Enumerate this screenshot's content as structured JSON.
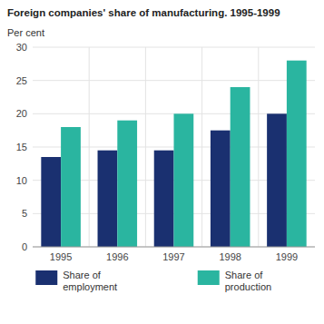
{
  "chart_data": {
    "type": "bar",
    "title": "Foreign companies' share of manufacturing. 1995-1999",
    "ylabel": "Per cent",
    "categories": [
      "1995",
      "1996",
      "1997",
      "1998",
      "1999"
    ],
    "series": [
      {
        "name": "Share of\nemployment",
        "color": "#1a3070",
        "values": [
          13.5,
          14.5,
          14.5,
          17.5,
          20.0
        ]
      },
      {
        "name": "Share of\nproduction",
        "color": "#2ab5a0",
        "values": [
          18.0,
          19.0,
          20.0,
          24.0,
          28.0
        ]
      }
    ],
    "ylim": [
      0,
      30
    ],
    "yticks": [
      0,
      5,
      10,
      15,
      20,
      25,
      30
    ],
    "grid": true,
    "legend": "bottom"
  }
}
